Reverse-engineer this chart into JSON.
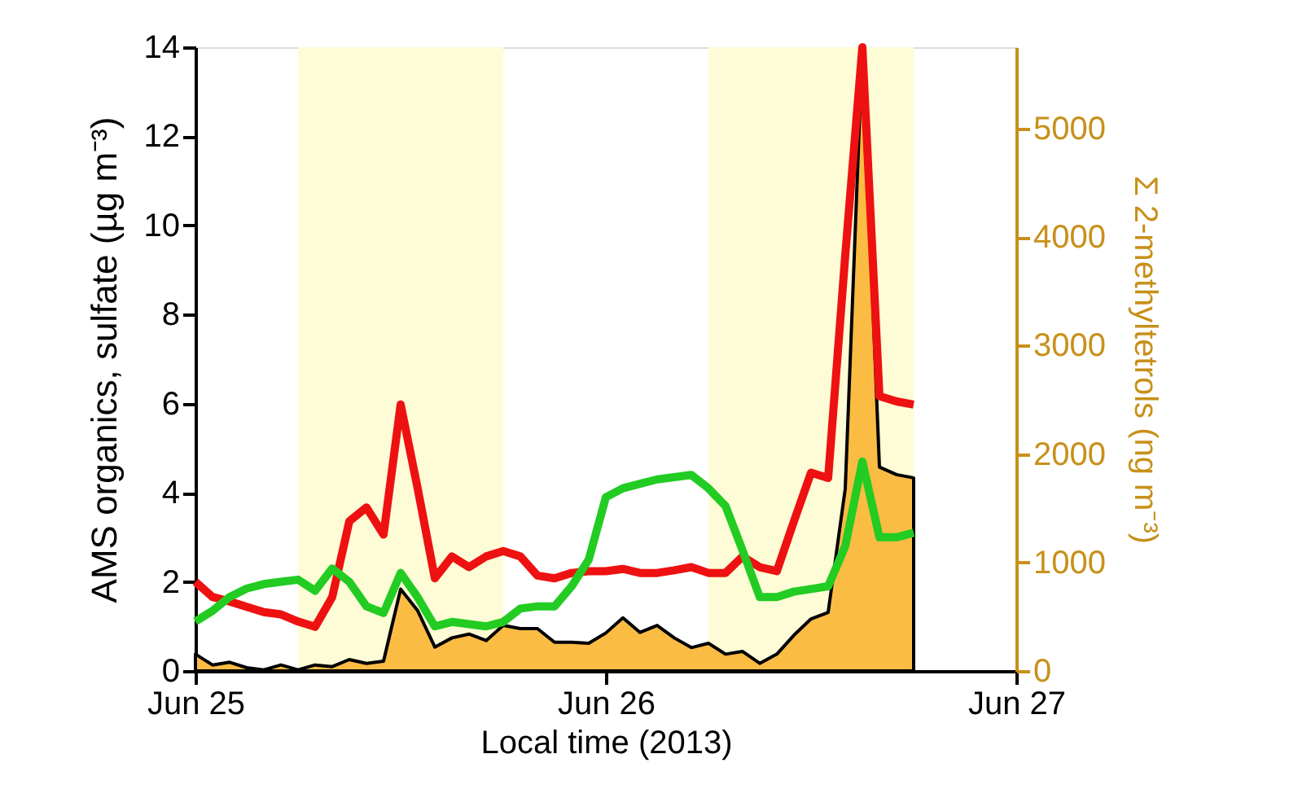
{
  "chart_data": {
    "type": "line",
    "xlabel": "Local time (2013)",
    "ylabel": "AMS organics, sulfate (µg m⁻³)",
    "y2label": "Σ 2-methyltetrols (ng m⁻³)",
    "x": [
      "2013-06-25T00:00",
      "2013-06-25T01:00",
      "2013-06-25T02:00",
      "2013-06-25T03:00",
      "2013-06-25T04:00",
      "2013-06-25T05:00",
      "2013-06-25T06:00",
      "2013-06-25T07:00",
      "2013-06-25T08:00",
      "2013-06-25T09:00",
      "2013-06-25T10:00",
      "2013-06-25T11:00",
      "2013-06-25T12:00",
      "2013-06-25T13:00",
      "2013-06-25T14:00",
      "2013-06-25T15:00",
      "2013-06-25T16:00",
      "2013-06-25T17:00",
      "2013-06-25T18:00",
      "2013-06-25T19:00",
      "2013-06-25T20:00",
      "2013-06-25T21:00",
      "2013-06-25T22:00",
      "2013-06-25T23:00",
      "2013-06-26T00:00",
      "2013-06-26T01:00",
      "2013-06-26T02:00",
      "2013-06-26T03:00",
      "2013-06-26T04:00",
      "2013-06-26T05:00",
      "2013-06-26T06:00",
      "2013-06-26T07:00",
      "2013-06-26T08:00",
      "2013-06-26T09:00",
      "2013-06-26T10:00",
      "2013-06-26T11:00",
      "2013-06-26T12:00",
      "2013-06-26T13:00",
      "2013-06-26T14:00",
      "2013-06-26T15:00",
      "2013-06-26T16:00",
      "2013-06-26T17:00",
      "2013-06-26T18:00"
    ],
    "series": [
      {
        "type": "area",
        "axis": "y2",
        "color": "#fbbc44",
        "values": [
          155,
          55,
          80,
          30,
          10,
          55,
          10,
          55,
          40,
          105,
          70,
          90,
          755,
          555,
          220,
          305,
          340,
          280,
          420,
          390,
          390,
          265,
          265,
          255,
          350,
          490,
          355,
          420,
          305,
          215,
          255,
          155,
          180,
          70,
          155,
          330,
          480,
          540,
          1680,
          5750,
          1880,
          1810,
          1780
        ]
      },
      {
        "color": "#ee1111",
        "values": [
          2.0,
          1.66,
          1.56,
          1.44,
          1.32,
          1.27,
          1.11,
          0.99,
          1.66,
          3.36,
          3.67,
          3.06,
          5.98,
          4.09,
          2.08,
          2.57,
          2.33,
          2.57,
          2.69,
          2.57,
          2.14,
          2.08,
          2.2,
          2.24,
          2.24,
          2.29,
          2.2,
          2.2,
          2.26,
          2.33,
          2.2,
          2.2,
          2.57,
          2.33,
          2.24,
          3.36,
          4.45,
          4.33,
          9.33,
          14.0,
          6.17,
          6.05,
          5.98
        ]
      },
      {
        "color": "#22cc22",
        "values": [
          1.11,
          1.35,
          1.66,
          1.85,
          1.95,
          2.0,
          2.05,
          1.8,
          2.3,
          2.0,
          1.45,
          1.3,
          2.2,
          1.65,
          1.0,
          1.1,
          1.05,
          1.0,
          1.1,
          1.4,
          1.45,
          1.45,
          1.9,
          2.5,
          3.9,
          4.1,
          4.2,
          4.3,
          4.35,
          4.4,
          4.1,
          3.7,
          2.7,
          1.66,
          1.66,
          1.78,
          1.84,
          1.9,
          2.8,
          4.7,
          3.0,
          3.0,
          3.1
        ]
      }
    ],
    "xlim": [
      "2013-06-25T00:00",
      "2013-06-27T00:00"
    ],
    "xticks": [
      {
        "value": "2013-06-25T00:00",
        "label": "Jun 25"
      },
      {
        "value": "2013-06-26T00:00",
        "label": "Jun 26"
      },
      {
        "value": "2013-06-27T00:00",
        "label": "Jun 27"
      }
    ],
    "ylim": [
      0,
      14
    ],
    "yticks": [
      0,
      2,
      4,
      6,
      8,
      10,
      12,
      14
    ],
    "y2lim": [
      0,
      5750
    ],
    "y2ticks": [
      0,
      1000,
      2000,
      3000,
      4000,
      5000
    ],
    "bands": [
      {
        "axis": "x",
        "from": "2013-06-25T06:00",
        "to": "2013-06-25T18:00",
        "color": "#fdfcd6"
      },
      {
        "axis": "x",
        "from": "2013-06-26T06:00",
        "to": "2013-06-26T18:00",
        "color": "#fdfcd6"
      }
    ],
    "grid": false,
    "legend": false
  }
}
